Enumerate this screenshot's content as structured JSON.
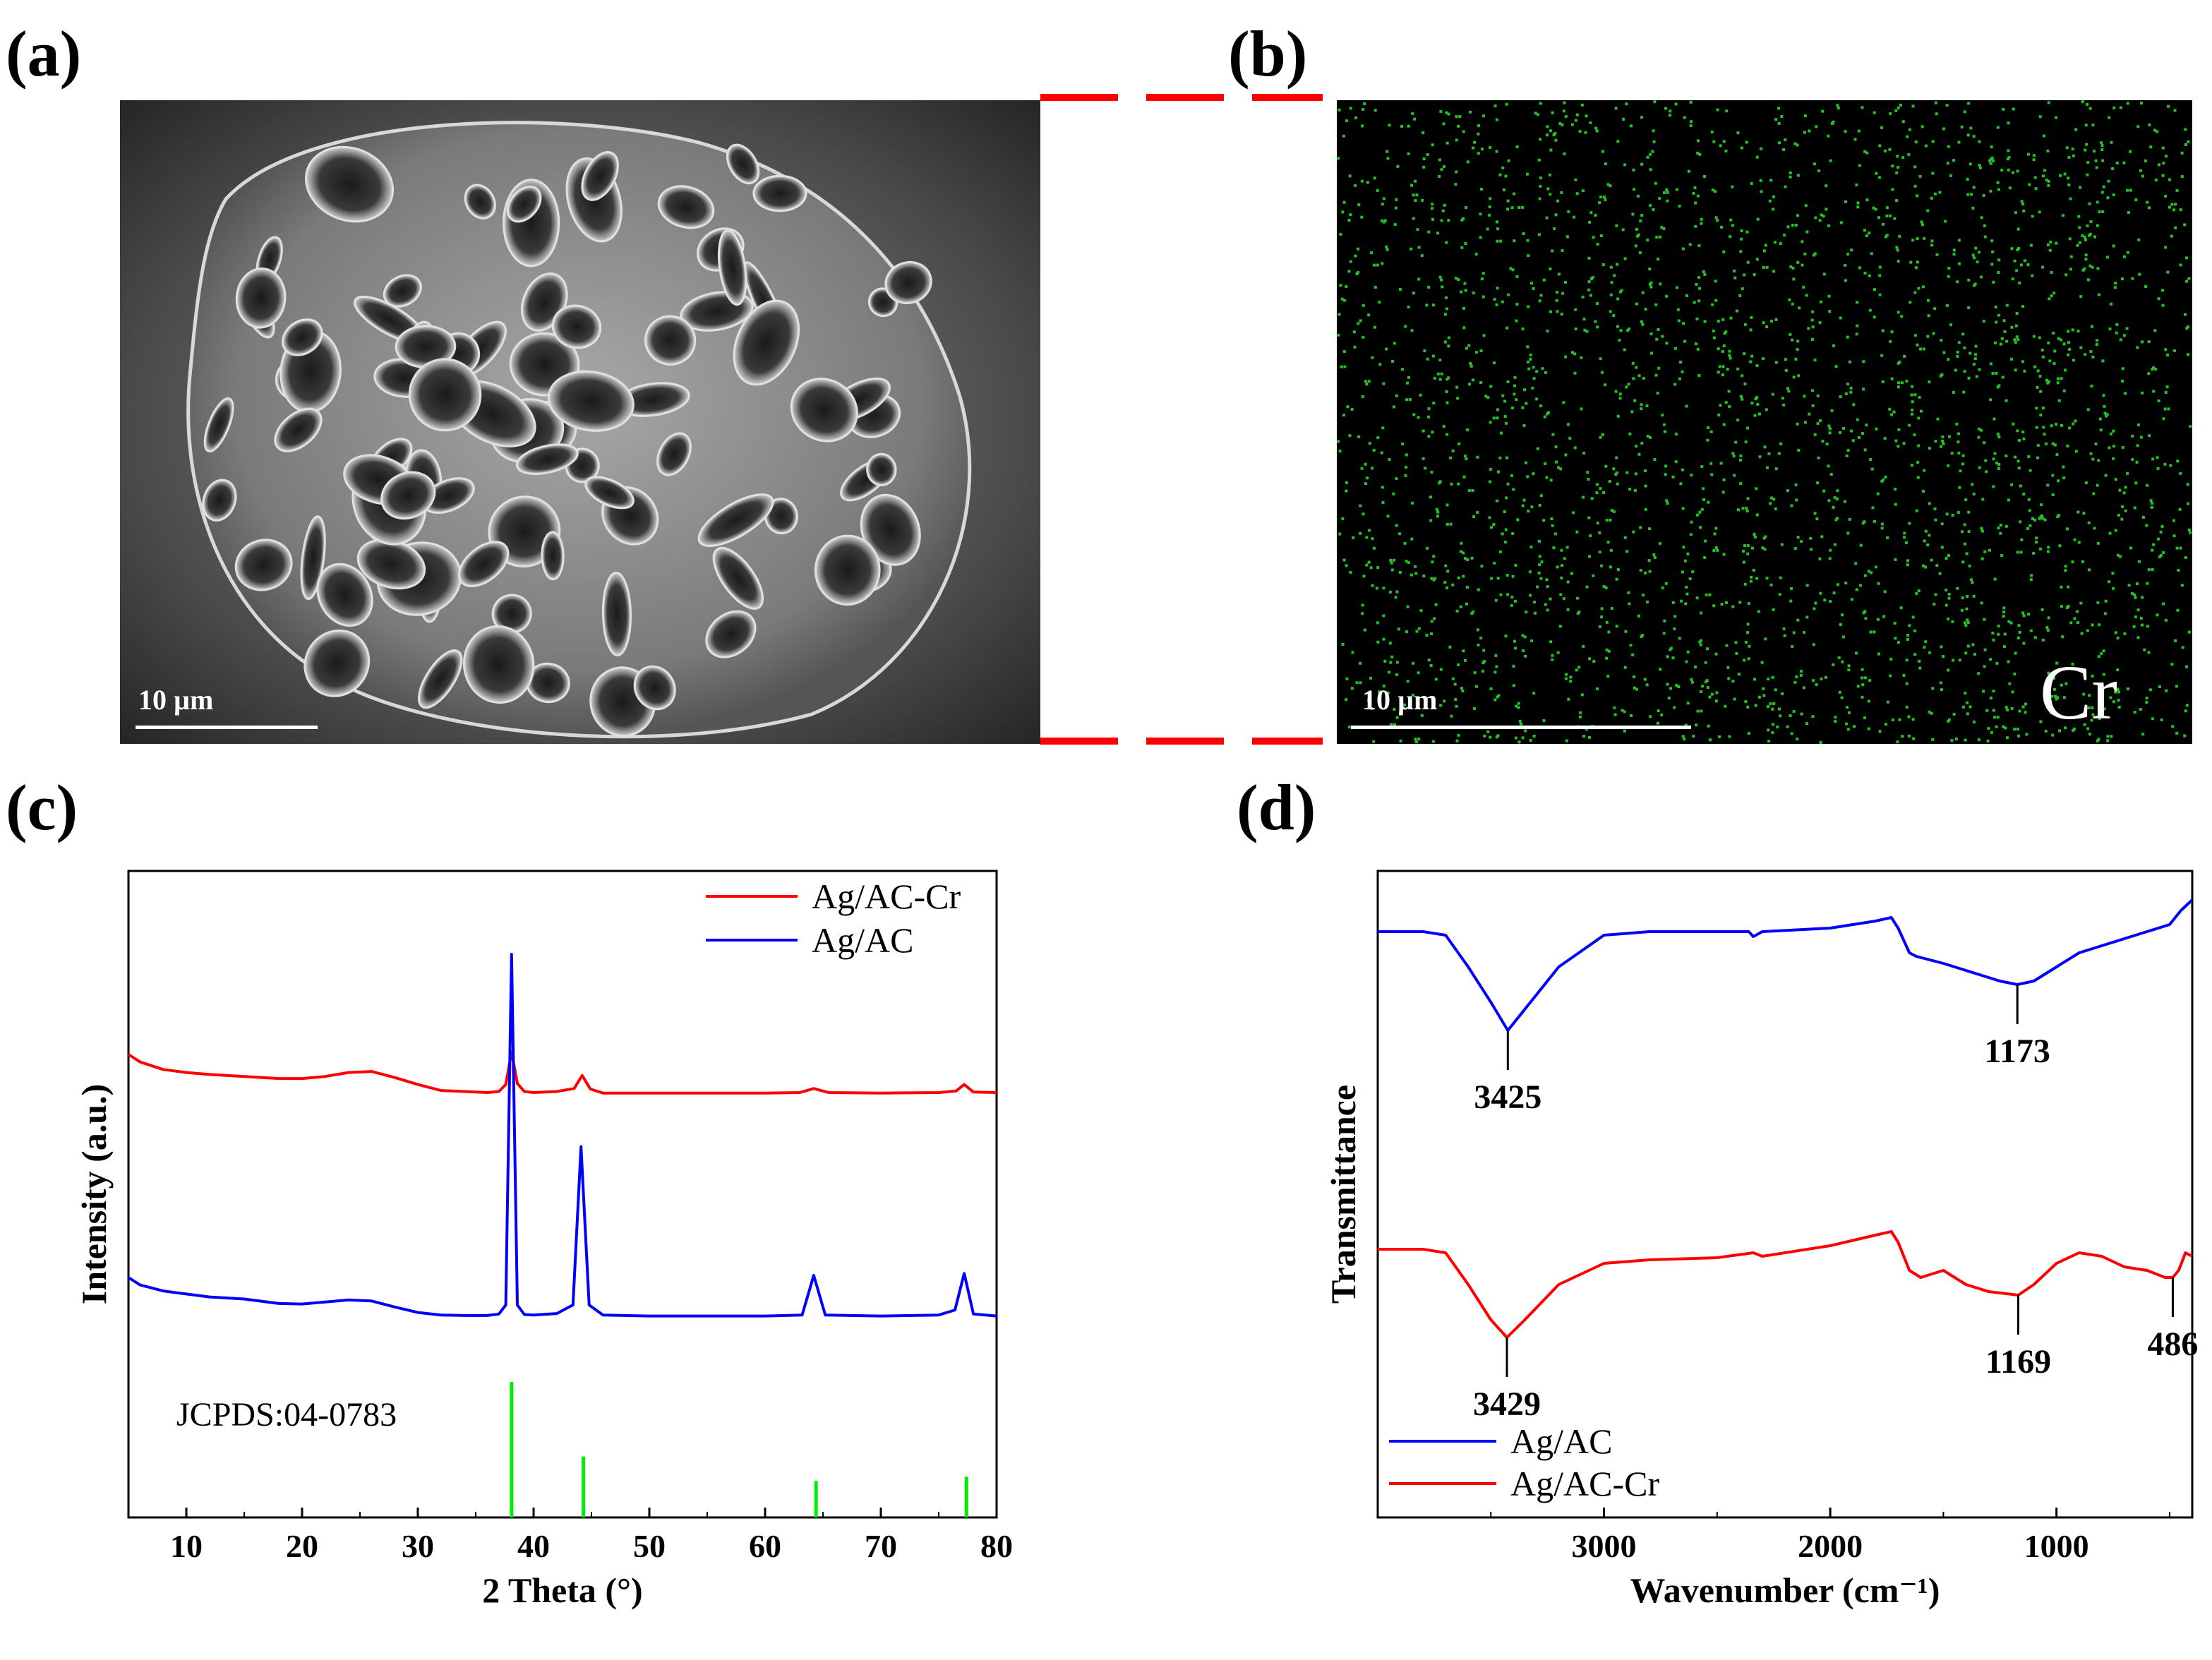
{
  "panels": {
    "a": {
      "label": "(a)",
      "scale_bar": "10 µm"
    },
    "b": {
      "label": "(b)",
      "scale_bar": "10 µm",
      "element": "Cr"
    },
    "c": {
      "label": "(c)"
    },
    "d": {
      "label": "(d)"
    }
  },
  "colors": {
    "red": "#ff0000",
    "blue": "#0000ff",
    "green": "#00ee00",
    "eds_dot": "#22c322"
  },
  "chart_data": [
    {
      "type": "line",
      "title": "",
      "xlabel": "2 Theta (°)",
      "ylabel": "Intensity (a.u.)",
      "xlim": [
        5,
        80
      ],
      "xticks": [
        10,
        20,
        30,
        40,
        50,
        60,
        70,
        80
      ],
      "yticks": [],
      "legend_location": "top-right",
      "series": [
        {
          "name": "Ag/AC-Cr",
          "color": "#ff0000",
          "x": [
            5,
            6,
            8,
            10,
            12,
            15,
            18,
            20,
            22,
            24,
            26,
            28,
            30,
            32,
            34,
            35,
            36,
            37,
            37.6,
            38.1,
            38.6,
            39.2,
            40,
            42,
            43.5,
            44.2,
            44.9,
            46,
            50,
            55,
            60,
            63,
            64.2,
            65.5,
            70,
            75,
            76.5,
            77.2,
            78,
            80
          ],
          "y": [
            0.8,
            0.785,
            0.77,
            0.764,
            0.76,
            0.756,
            0.752,
            0.752,
            0.756,
            0.764,
            0.766,
            0.754,
            0.74,
            0.728,
            0.726,
            0.725,
            0.724,
            0.726,
            0.74,
            0.805,
            0.742,
            0.726,
            0.724,
            0.726,
            0.732,
            0.758,
            0.731,
            0.723,
            0.723,
            0.723,
            0.723,
            0.724,
            0.732,
            0.724,
            0.723,
            0.724,
            0.727,
            0.74,
            0.725,
            0.724
          ]
        },
        {
          "name": "Ag/AC",
          "color": "#0000ff",
          "x": [
            5,
            6,
            8,
            10,
            12,
            15,
            18,
            20,
            22,
            24,
            26,
            28,
            30,
            32,
            34,
            35,
            36,
            37,
            37.6,
            38.1,
            38.6,
            39.2,
            40,
            42,
            43.4,
            44.1,
            44.8,
            46,
            50,
            55,
            60,
            63.2,
            64.2,
            65.2,
            70,
            75,
            76.4,
            77.2,
            78,
            80
          ],
          "y": [
            0.355,
            0.34,
            0.328,
            0.322,
            0.316,
            0.312,
            0.303,
            0.302,
            0.306,
            0.31,
            0.308,
            0.296,
            0.285,
            0.28,
            0.279,
            0.279,
            0.279,
            0.282,
            0.3,
            1.0,
            0.3,
            0.281,
            0.28,
            0.283,
            0.3,
            0.616,
            0.3,
            0.28,
            0.278,
            0.278,
            0.278,
            0.28,
            0.359,
            0.28,
            0.278,
            0.28,
            0.29,
            0.363,
            0.282,
            0.278
          ]
        }
      ],
      "reference": {
        "name": "JCPDS:04-0783",
        "color": "#00ee00",
        "positions": [
          38.1,
          44.3,
          64.4,
          77.4
        ],
        "heights": [
          1.0,
          0.45,
          0.27,
          0.3
        ]
      }
    },
    {
      "type": "line",
      "title": "",
      "xlabel": "Wavenumber (cm⁻¹)",
      "ylabel": "Transmittance",
      "xlim": [
        4000,
        400
      ],
      "xticks": [
        3000,
        2000,
        1000
      ],
      "yticks": [],
      "legend_location": "bottom-left",
      "series": [
        {
          "name": "Ag/AC",
          "color": "#0000ff",
          "x": [
            4000,
            3800,
            3700,
            3600,
            3500,
            3425,
            3350,
            3200,
            3000,
            2800,
            2500,
            2360,
            2340,
            2300,
            2000,
            1800,
            1730,
            1700,
            1650,
            1620,
            1500,
            1400,
            1300,
            1250,
            1173,
            1100,
            1000,
            900,
            800,
            700,
            600,
            500,
            450,
            400
          ],
          "y": [
            0.8,
            0.8,
            0.795,
            0.75,
            0.7,
            0.66,
            0.69,
            0.75,
            0.795,
            0.8,
            0.8,
            0.8,
            0.793,
            0.8,
            0.805,
            0.815,
            0.82,
            0.805,
            0.77,
            0.765,
            0.755,
            0.745,
            0.735,
            0.73,
            0.725,
            0.73,
            0.75,
            0.77,
            0.78,
            0.79,
            0.8,
            0.81,
            0.83,
            0.845
          ]
        },
        {
          "name": "Ag/AC-Cr",
          "color": "#ff0000",
          "x": [
            4000,
            3800,
            3700,
            3600,
            3500,
            3429,
            3350,
            3200,
            3000,
            2800,
            2500,
            2340,
            2300,
            2000,
            1800,
            1730,
            1700,
            1650,
            1600,
            1500,
            1400,
            1300,
            1169,
            1100,
            1000,
            900,
            800,
            700,
            600,
            520,
            486,
            460,
            430,
            400
          ],
          "y": [
            0.35,
            0.35,
            0.345,
            0.3,
            0.25,
            0.225,
            0.25,
            0.3,
            0.33,
            0.335,
            0.338,
            0.345,
            0.34,
            0.355,
            0.37,
            0.375,
            0.36,
            0.32,
            0.31,
            0.32,
            0.3,
            0.29,
            0.285,
            0.3,
            0.33,
            0.345,
            0.34,
            0.325,
            0.32,
            0.31,
            0.31,
            0.32,
            0.345,
            0.34
          ]
        }
      ],
      "annotations": [
        {
          "text": "3425",
          "x": 3425,
          "series": "Ag/AC"
        },
        {
          "text": "1173",
          "x": 1173,
          "series": "Ag/AC"
        },
        {
          "text": "3429",
          "x": 3429,
          "series": "Ag/AC-Cr"
        },
        {
          "text": "1169",
          "x": 1169,
          "series": "Ag/AC-Cr"
        },
        {
          "text": "486",
          "x": 486,
          "series": "Ag/AC-Cr"
        }
      ]
    }
  ]
}
